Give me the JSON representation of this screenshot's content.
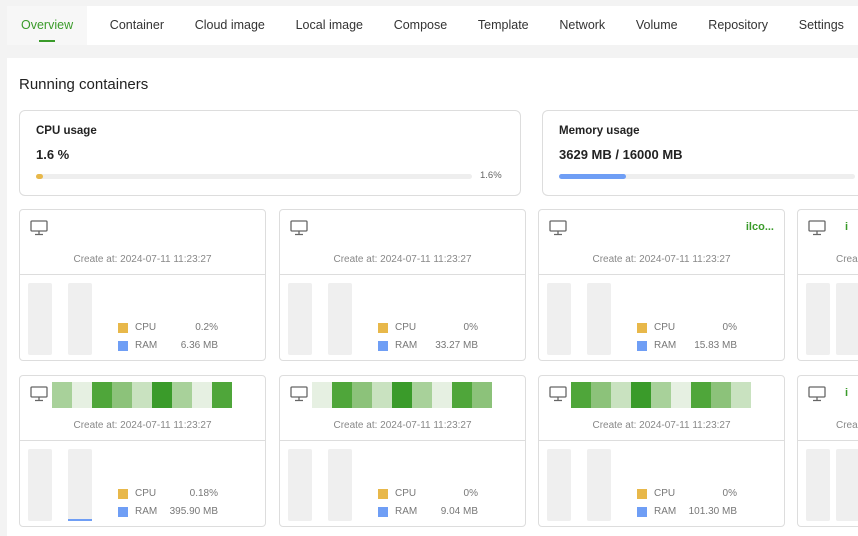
{
  "tabs": [
    "Overview",
    "Container",
    "Cloud image",
    "Local image",
    "Compose",
    "Template",
    "Network",
    "Volume",
    "Repository",
    "Settings"
  ],
  "active_tab": "Overview",
  "section_title": "Running containers",
  "cpu": {
    "title": "CPU usage",
    "value": "1.6 %",
    "percent": 1.6,
    "percent_label": "1.6%",
    "color": "#e8b84a"
  },
  "memory": {
    "title": "Memory usage",
    "value": "3629 MB / 16000 MB",
    "used_mb": 3629,
    "total_mb": 16000,
    "color": "#6f9ef5"
  },
  "legend": {
    "cpu": "CPU",
    "ram": "RAM"
  },
  "colors": {
    "accent": "#3a9b2a",
    "cpu": "#e8b84a",
    "ram": "#6f9ef5"
  },
  "containers": [
    {
      "name": "",
      "created": "Create at: 2024-07-11 11:23:27",
      "cpu": "0.2%",
      "ram": "6.36 MB"
    },
    {
      "name": "",
      "created": "Create at: 2024-07-11 11:23:27",
      "cpu": "0%",
      "ram": "33.27 MB"
    },
    {
      "name": "ilco...",
      "created": "Create at: 2024-07-11 11:23:27",
      "cpu": "0%",
      "ram": "15.83 MB"
    },
    {
      "name": "i",
      "created": "Crea",
      "cpu": "",
      "ram": ""
    },
    {
      "name": "",
      "created": "Create at: 2024-07-11 11:23:27",
      "cpu": "0.18%",
      "ram": "395.90 MB"
    },
    {
      "name": "",
      "created": "Create at: 2024-07-11 11:23:27",
      "cpu": "0%",
      "ram": "9.04 MB"
    },
    {
      "name": "",
      "created": "Create at: 2024-07-11 11:23:27",
      "cpu": "0%",
      "ram": "101.30 MB"
    },
    {
      "name": "i",
      "created": "Crea",
      "cpu": "",
      "ram": ""
    }
  ]
}
